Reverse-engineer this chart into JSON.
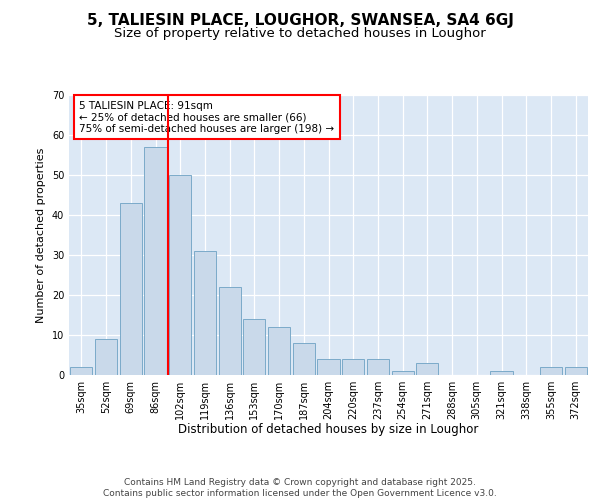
{
  "title1": "5, TALIESIN PLACE, LOUGHOR, SWANSEA, SA4 6GJ",
  "title2": "Size of property relative to detached houses in Loughor",
  "xlabel": "Distribution of detached houses by size in Loughor",
  "ylabel": "Number of detached properties",
  "categories": [
    "35sqm",
    "52sqm",
    "69sqm",
    "86sqm",
    "102sqm",
    "119sqm",
    "136sqm",
    "153sqm",
    "170sqm",
    "187sqm",
    "204sqm",
    "220sqm",
    "237sqm",
    "254sqm",
    "271sqm",
    "288sqm",
    "305sqm",
    "321sqm",
    "338sqm",
    "355sqm",
    "372sqm"
  ],
  "values": [
    2,
    9,
    43,
    57,
    50,
    31,
    22,
    14,
    12,
    8,
    4,
    4,
    4,
    1,
    3,
    0,
    0,
    1,
    0,
    2,
    2
  ],
  "bar_color": "#c9d9ea",
  "bar_edge_color": "#7baac9",
  "vline_x": 3.5,
  "vline_color": "red",
  "annotation_text": "5 TALIESIN PLACE: 91sqm\n← 25% of detached houses are smaller (66)\n75% of semi-detached houses are larger (198) →",
  "annotation_box_facecolor": "white",
  "annotation_box_edgecolor": "red",
  "ylim": [
    0,
    70
  ],
  "yticks": [
    0,
    10,
    20,
    30,
    40,
    50,
    60,
    70
  ],
  "footer_text": "Contains HM Land Registry data © Crown copyright and database right 2025.\nContains public sector information licensed under the Open Government Licence v3.0.",
  "fig_bg_color": "#ffffff",
  "plot_bg_color": "#dce8f5",
  "grid_color": "#ffffff",
  "title1_fontsize": 11,
  "title2_fontsize": 9.5,
  "xlabel_fontsize": 8.5,
  "ylabel_fontsize": 8,
  "tick_fontsize": 7,
  "annot_fontsize": 7.5,
  "footer_fontsize": 6.5
}
